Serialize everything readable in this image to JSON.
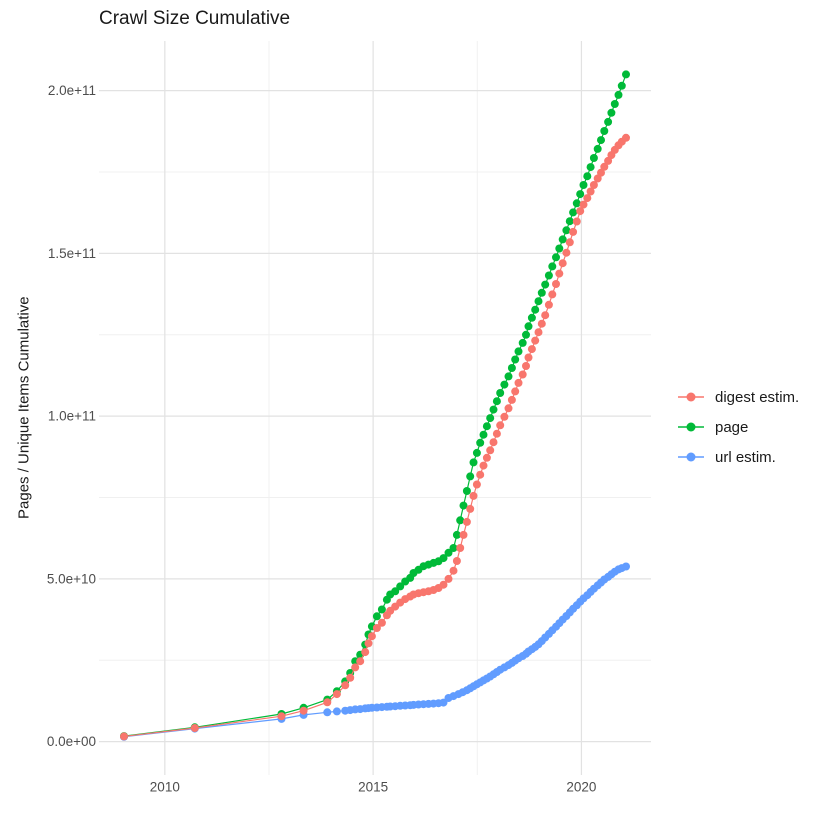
{
  "figure": {
    "background": "#ffffff",
    "text_color": "#1a1a1a",
    "tick_text_color": "#4d4d4d",
    "grid_major_color": "#e2e2e2",
    "grid_minor_color": "#f0f0f0"
  },
  "chart_data": {
    "type": "line",
    "style": "line-with-points (ggplot2 cumulative scatter)",
    "title": "Crawl Size Cumulative",
    "xlabel": "",
    "ylabel": "Pages / Unique Items Cumulative",
    "legend_position": "right-center",
    "grid": true,
    "x_unit": "year (decimal)",
    "y_unit": "value_e9 = billions of items; axis labels in scientific notation",
    "xlim": [
      2008.42,
      2021.67
    ],
    "ylim_e9": [
      -10.25,
      215.25
    ],
    "x_ticks": [
      {
        "label": "2010",
        "value": 2010
      },
      {
        "label": "2015",
        "value": 2015
      },
      {
        "label": "2020",
        "value": 2020
      }
    ],
    "x_minor": [
      2012.5,
      2017.5
    ],
    "y_ticks": [
      {
        "label": "0.0e+00",
        "value_e9": 0
      },
      {
        "label": "5.0e+10",
        "value_e9": 50
      },
      {
        "label": "1.0e+11",
        "value_e9": 100
      },
      {
        "label": "1.5e+11",
        "value_e9": 150
      },
      {
        "label": "2.0e+11",
        "value_e9": 200
      }
    ],
    "y_minor_e9": [
      25,
      75,
      125,
      175
    ],
    "draw_order": [
      "url estim.",
      "page",
      "digest estim."
    ],
    "series": [
      {
        "name": "digest estim.",
        "color": "#F8766D",
        "points_year_value_e9": [
          [
            2009.02,
            1.6
          ],
          [
            2010.72,
            4.2
          ],
          [
            2012.8,
            7.8
          ],
          [
            2013.33,
            9.5
          ],
          [
            2013.9,
            12.1
          ],
          [
            2014.13,
            14.6
          ],
          [
            2014.33,
            17.3
          ],
          [
            2014.45,
            19.6
          ],
          [
            2014.57,
            22.8
          ],
          [
            2014.69,
            24.7
          ],
          [
            2014.81,
            27.5
          ],
          [
            2014.89,
            30.2
          ],
          [
            2014.97,
            32.4
          ],
          [
            2015.09,
            34.9
          ],
          [
            2015.21,
            36.5
          ],
          [
            2015.33,
            38.8
          ],
          [
            2015.41,
            40.2
          ],
          [
            2015.53,
            41.5
          ],
          [
            2015.65,
            42.7
          ],
          [
            2015.77,
            43.8
          ],
          [
            2015.89,
            44.6
          ],
          [
            2015.97,
            45.2
          ],
          [
            2016.09,
            45.6
          ],
          [
            2016.21,
            45.9
          ],
          [
            2016.33,
            46.2
          ],
          [
            2016.45,
            46.6
          ],
          [
            2016.57,
            47.2
          ],
          [
            2016.69,
            48.2
          ],
          [
            2016.81,
            50.0
          ],
          [
            2016.93,
            52.5
          ],
          [
            2017.01,
            55.5
          ],
          [
            2017.09,
            59.5
          ],
          [
            2017.17,
            63.5
          ],
          [
            2017.25,
            67.5
          ],
          [
            2017.33,
            71.5
          ],
          [
            2017.41,
            75.5
          ],
          [
            2017.49,
            79.0
          ],
          [
            2017.57,
            82.0
          ],
          [
            2017.65,
            84.8
          ],
          [
            2017.73,
            87.2
          ],
          [
            2017.81,
            89.5
          ],
          [
            2017.89,
            92.0
          ],
          [
            2017.97,
            94.6
          ],
          [
            2018.05,
            97.2
          ],
          [
            2018.15,
            99.8
          ],
          [
            2018.25,
            102.4
          ],
          [
            2018.33,
            105.0
          ],
          [
            2018.41,
            107.6
          ],
          [
            2018.49,
            110.2
          ],
          [
            2018.59,
            112.8
          ],
          [
            2018.67,
            115.4
          ],
          [
            2018.73,
            118.0
          ],
          [
            2018.81,
            120.6
          ],
          [
            2018.89,
            123.2
          ],
          [
            2018.97,
            125.8
          ],
          [
            2019.05,
            128.4
          ],
          [
            2019.13,
            131.0
          ],
          [
            2019.22,
            134.2
          ],
          [
            2019.3,
            137.4
          ],
          [
            2019.39,
            140.6
          ],
          [
            2019.47,
            143.8
          ],
          [
            2019.55,
            147.0
          ],
          [
            2019.64,
            150.2
          ],
          [
            2019.72,
            153.4
          ],
          [
            2019.8,
            156.6
          ],
          [
            2019.89,
            159.8
          ],
          [
            2019.97,
            163.0
          ],
          [
            2020.05,
            165.0
          ],
          [
            2020.14,
            167.0
          ],
          [
            2020.22,
            169.0
          ],
          [
            2020.3,
            171.0
          ],
          [
            2020.39,
            173.0
          ],
          [
            2020.47,
            174.8
          ],
          [
            2020.55,
            176.6
          ],
          [
            2020.64,
            178.4
          ],
          [
            2020.72,
            180.2
          ],
          [
            2020.8,
            181.8
          ],
          [
            2020.89,
            183.2
          ],
          [
            2020.97,
            184.3
          ],
          [
            2021.07,
            185.5
          ]
        ]
      },
      {
        "name": "page",
        "color": "#00BA38",
        "points_year_value_e9": [
          [
            2009.02,
            1.7
          ],
          [
            2010.72,
            4.4
          ],
          [
            2012.8,
            8.5
          ],
          [
            2013.33,
            10.4
          ],
          [
            2013.9,
            12.9
          ],
          [
            2014.13,
            15.5
          ],
          [
            2014.33,
            18.5
          ],
          [
            2014.45,
            21.1
          ],
          [
            2014.57,
            24.7
          ],
          [
            2014.69,
            26.7
          ],
          [
            2014.81,
            29.8
          ],
          [
            2014.89,
            32.9
          ],
          [
            2014.97,
            35.4
          ],
          [
            2015.09,
            38.5
          ],
          [
            2015.21,
            40.6
          ],
          [
            2015.33,
            43.6
          ],
          [
            2015.41,
            45.2
          ],
          [
            2015.53,
            46.2
          ],
          [
            2015.65,
            47.7
          ],
          [
            2015.77,
            49.2
          ],
          [
            2015.89,
            50.3
          ],
          [
            2015.97,
            51.8
          ],
          [
            2016.09,
            52.8
          ],
          [
            2016.21,
            53.9
          ],
          [
            2016.33,
            54.4
          ],
          [
            2016.45,
            54.9
          ],
          [
            2016.57,
            55.4
          ],
          [
            2016.69,
            56.4
          ],
          [
            2016.81,
            58.0
          ],
          [
            2016.93,
            59.5
          ],
          [
            2017.01,
            63.5
          ],
          [
            2017.09,
            68.0
          ],
          [
            2017.17,
            72.5
          ],
          [
            2017.25,
            77.0
          ],
          [
            2017.33,
            81.5
          ],
          [
            2017.41,
            85.8
          ],
          [
            2017.49,
            88.7
          ],
          [
            2017.57,
            91.8
          ],
          [
            2017.65,
            94.3
          ],
          [
            2017.73,
            96.9
          ],
          [
            2017.81,
            99.4
          ],
          [
            2017.89,
            102.0
          ],
          [
            2017.97,
            104.6
          ],
          [
            2018.05,
            107.1
          ],
          [
            2018.15,
            109.7
          ],
          [
            2018.25,
            112.2
          ],
          [
            2018.33,
            114.8
          ],
          [
            2018.41,
            117.4
          ],
          [
            2018.49,
            119.9
          ],
          [
            2018.59,
            122.5
          ],
          [
            2018.67,
            125.0
          ],
          [
            2018.73,
            127.6
          ],
          [
            2018.81,
            130.2
          ],
          [
            2018.89,
            132.7
          ],
          [
            2018.97,
            135.3
          ],
          [
            2019.05,
            137.9
          ],
          [
            2019.13,
            140.4
          ],
          [
            2019.22,
            143.2
          ],
          [
            2019.3,
            146.0
          ],
          [
            2019.39,
            148.8
          ],
          [
            2019.47,
            151.5
          ],
          [
            2019.55,
            154.3
          ],
          [
            2019.64,
            157.1
          ],
          [
            2019.72,
            159.9
          ],
          [
            2019.8,
            162.6
          ],
          [
            2019.89,
            165.4
          ],
          [
            2019.97,
            168.2
          ],
          [
            2020.05,
            171.0
          ],
          [
            2020.14,
            173.7
          ],
          [
            2020.22,
            176.5
          ],
          [
            2020.3,
            179.3
          ],
          [
            2020.39,
            182.1
          ],
          [
            2020.47,
            184.8
          ],
          [
            2020.55,
            187.6
          ],
          [
            2020.64,
            190.4
          ],
          [
            2020.72,
            193.2
          ],
          [
            2020.8,
            195.9
          ],
          [
            2020.89,
            198.7
          ],
          [
            2020.97,
            201.5
          ],
          [
            2021.07,
            205.0
          ]
        ]
      },
      {
        "name": "url estim.",
        "color": "#619CFF",
        "points_year_value_e9": [
          [
            2009.02,
            1.5
          ],
          [
            2010.72,
            4.0
          ],
          [
            2012.8,
            7.0
          ],
          [
            2013.33,
            8.2
          ],
          [
            2013.9,
            9.0
          ],
          [
            2014.13,
            9.3
          ],
          [
            2014.33,
            9.5
          ],
          [
            2014.45,
            9.7
          ],
          [
            2014.57,
            9.9
          ],
          [
            2014.69,
            10.0
          ],
          [
            2014.81,
            10.2
          ],
          [
            2014.89,
            10.3
          ],
          [
            2014.97,
            10.4
          ],
          [
            2015.09,
            10.5
          ],
          [
            2015.21,
            10.6
          ],
          [
            2015.33,
            10.7
          ],
          [
            2015.41,
            10.8
          ],
          [
            2015.53,
            10.9
          ],
          [
            2015.65,
            11.0
          ],
          [
            2015.77,
            11.1
          ],
          [
            2015.89,
            11.2
          ],
          [
            2015.97,
            11.3
          ],
          [
            2016.09,
            11.4
          ],
          [
            2016.21,
            11.5
          ],
          [
            2016.33,
            11.6
          ],
          [
            2016.45,
            11.7
          ],
          [
            2016.57,
            11.8
          ],
          [
            2016.69,
            12.0
          ],
          [
            2016.81,
            13.4
          ],
          [
            2016.93,
            14.0
          ],
          [
            2017.05,
            14.6
          ],
          [
            2017.15,
            15.2
          ],
          [
            2017.25,
            15.8
          ],
          [
            2017.33,
            16.4
          ],
          [
            2017.41,
            17.0
          ],
          [
            2017.49,
            17.6
          ],
          [
            2017.57,
            18.2
          ],
          [
            2017.65,
            18.8
          ],
          [
            2017.73,
            19.4
          ],
          [
            2017.81,
            20.0
          ],
          [
            2017.89,
            20.7
          ],
          [
            2017.97,
            21.4
          ],
          [
            2018.05,
            22.1
          ],
          [
            2018.15,
            22.8
          ],
          [
            2018.25,
            23.5
          ],
          [
            2018.33,
            24.2
          ],
          [
            2018.41,
            24.9
          ],
          [
            2018.49,
            25.6
          ],
          [
            2018.59,
            26.3
          ],
          [
            2018.67,
            27.0
          ],
          [
            2018.73,
            27.7
          ],
          [
            2018.81,
            28.4
          ],
          [
            2018.89,
            29.1
          ],
          [
            2018.97,
            29.9
          ],
          [
            2019.05,
            30.9
          ],
          [
            2019.13,
            32.0
          ],
          [
            2019.22,
            33.1
          ],
          [
            2019.3,
            34.2
          ],
          [
            2019.39,
            35.3
          ],
          [
            2019.47,
            36.4
          ],
          [
            2019.55,
            37.5
          ],
          [
            2019.64,
            38.6
          ],
          [
            2019.72,
            39.7
          ],
          [
            2019.8,
            40.8
          ],
          [
            2019.89,
            41.9
          ],
          [
            2019.97,
            43.0
          ],
          [
            2020.05,
            44.0
          ],
          [
            2020.14,
            45.0
          ],
          [
            2020.22,
            46.0
          ],
          [
            2020.3,
            47.0
          ],
          [
            2020.39,
            48.0
          ],
          [
            2020.47,
            48.9
          ],
          [
            2020.55,
            49.8
          ],
          [
            2020.64,
            50.6
          ],
          [
            2020.72,
            51.4
          ],
          [
            2020.8,
            52.2
          ],
          [
            2020.89,
            52.9
          ],
          [
            2020.97,
            53.3
          ],
          [
            2021.07,
            53.8
          ]
        ]
      }
    ]
  }
}
